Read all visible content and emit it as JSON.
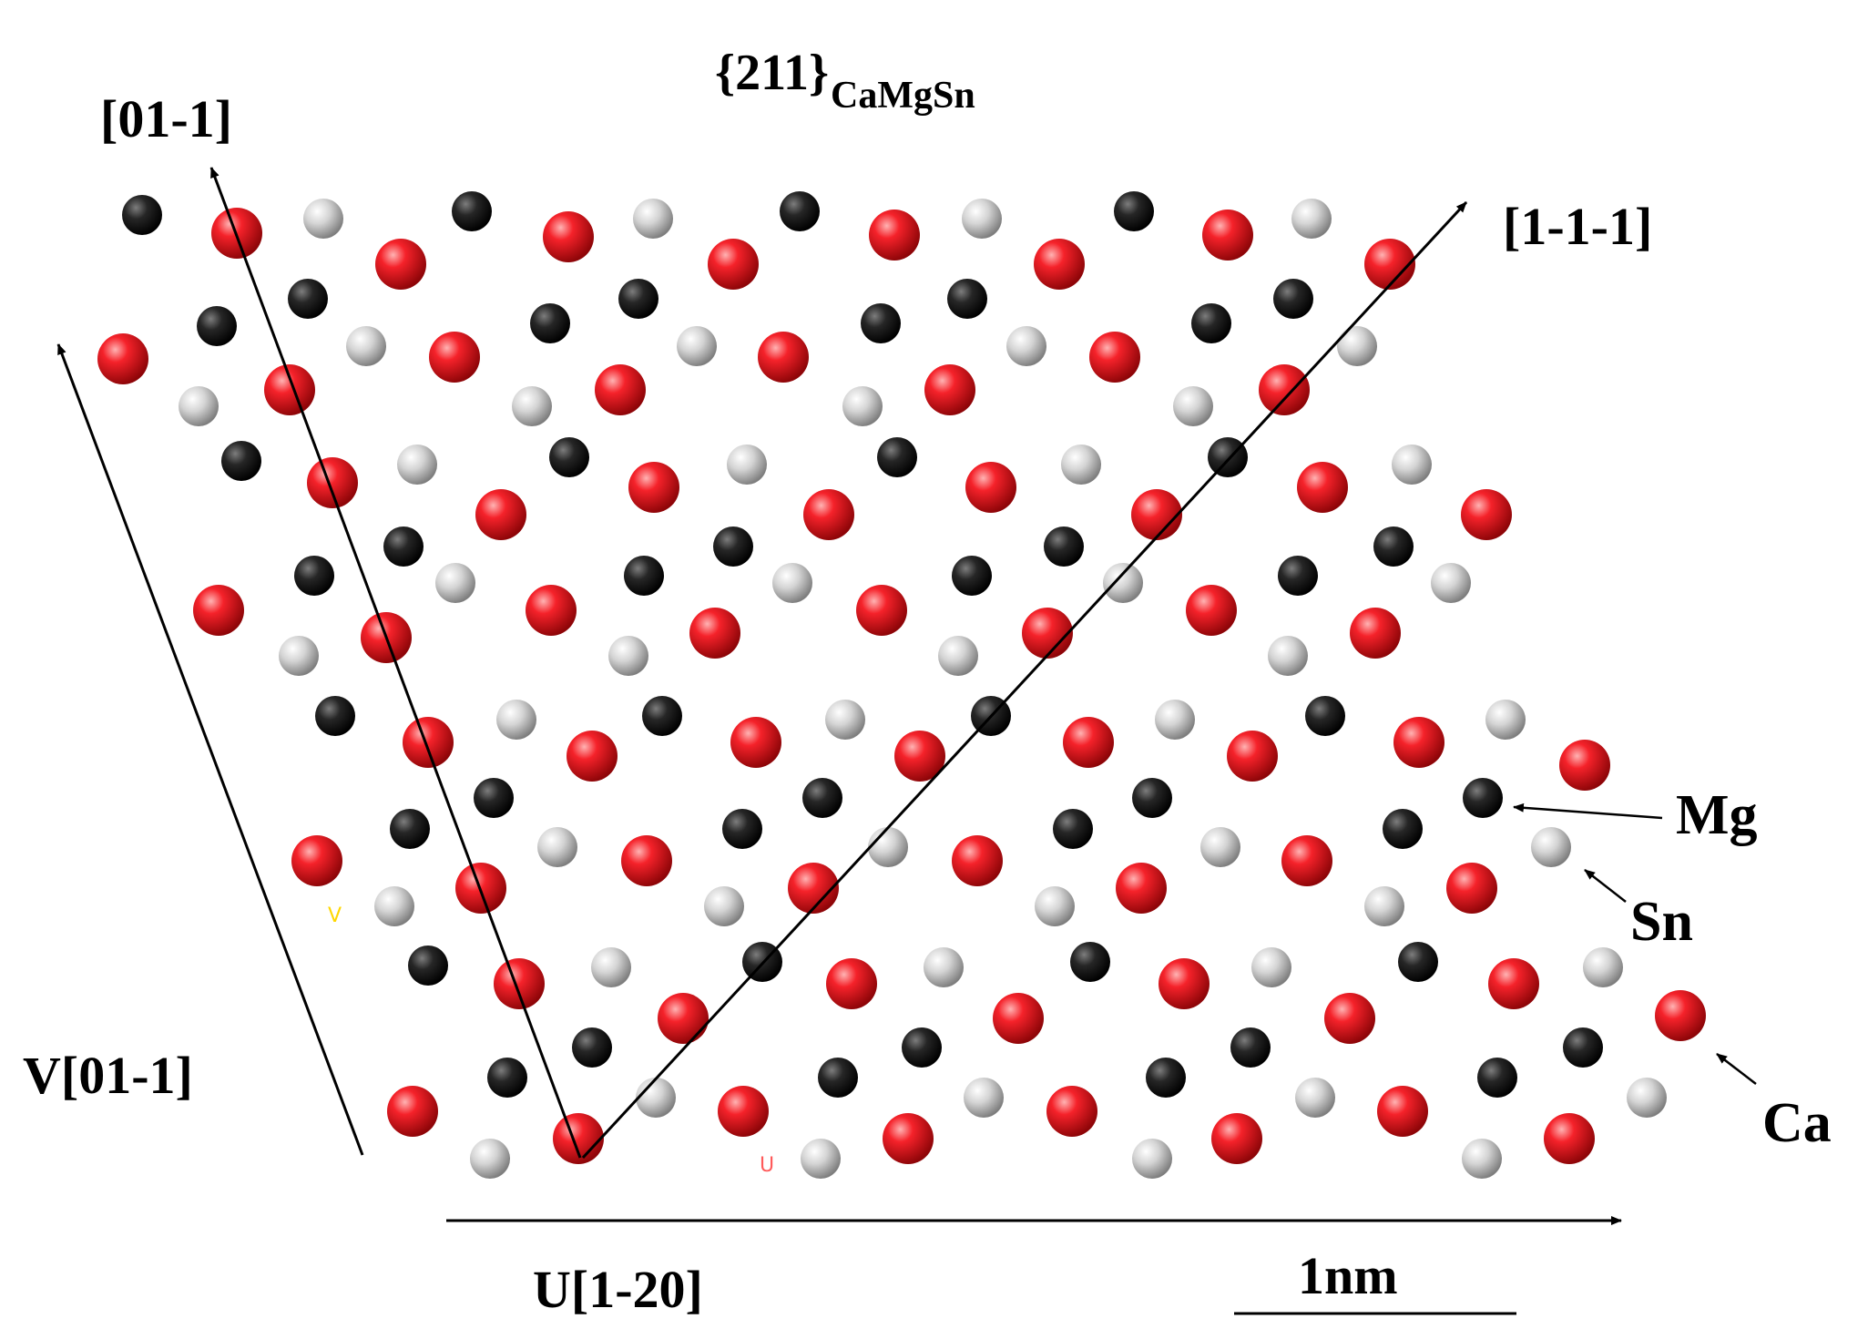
{
  "title": {
    "main": "{211}",
    "subscript": "CaMgSn"
  },
  "directions": {
    "upper_left": "[01-1]",
    "upper_right": "[1-1-1]",
    "v_axis": "V[01-1]",
    "u_axis": "U[1-20]"
  },
  "scale_bar": {
    "label": "1nm"
  },
  "legend": {
    "mg": "Mg",
    "sn": "Sn",
    "ca": "Ca"
  },
  "axis_markers": {
    "v": "V",
    "u": "U"
  },
  "colors": {
    "ca": "#e2141a",
    "mg": "#1b1b1b",
    "sn": "#d2d2d2",
    "marker_v": "#ffd700",
    "marker_u": "#ff5a5a"
  }
}
